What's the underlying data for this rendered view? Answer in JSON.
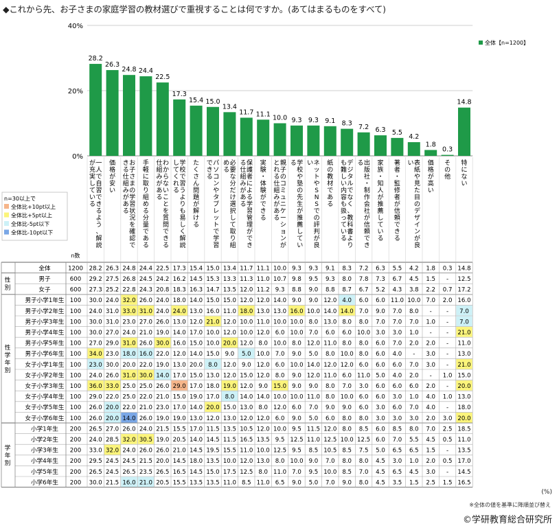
{
  "title": "◆これから先、お子さまの家庭学習の教材選びで重視することは何ですか。(あてはまるものをすべて)",
  "colors": {
    "bar": "#1f9a48",
    "hi10": "#f6b58a",
    "hi5": "#fbf47b",
    "lo5": "#cdf1f7",
    "lo10": "#7aa7e6",
    "grid": "#cfcfcf"
  },
  "chart_data": {
    "type": "bar",
    "title": "◆これから先、お子さまの家庭学習の教材選びで重視することは何ですか。(あてはまるものをすべて)",
    "y_ticks": [
      "0%",
      "20%",
      "40%"
    ],
    "ylim": [
      0,
      40
    ],
    "legend": "全体【n=1200】",
    "legend_position": "top-right",
    "categories": [
      "一人で自習できるよう、解説が充実している",
      "価格が安い",
      "お子さまの学習状況を確認できる仕組みがある",
      "手軽に取り組める分量である",
      "わからないことを質問できる仕組みがある",
      "学校で習うよりも易しく解説してくれる",
      "たくさん問題が解ける",
      "パソコンやタブレットで学習できる",
      "必要な分だけ選択して取り組める",
      "保護者による学習管理ができる仕組みがある",
      "実験・体験ができる",
      "親子のコミュニケーションがとれる仕組みがある",
      "学校や塾の先生が推薦している",
      "ネットやSNSでの評判が良い",
      "紙の教材である",
      "デジタルでなく、教科書よりも難しい内容も扱っている",
      "出版社・制作会社が信頼できる",
      "家族・知人が推薦している",
      "著者・監修者が信頼できる",
      "表紙や見た目のデザインが良い",
      "価格が高い",
      "その他",
      "特にない"
    ],
    "values": [
      28.2,
      26.3,
      24.8,
      24.4,
      22.5,
      17.3,
      15.4,
      15.0,
      13.4,
      11.7,
      11.1,
      10.0,
      9.3,
      9.3,
      9.1,
      8.3,
      7.2,
      6.3,
      5.5,
      4.2,
      1.8,
      0.3,
      14.8
    ],
    "value_labels": [
      "28.2",
      "26.3",
      "24.8",
      "24.4",
      "22.5",
      "17.3",
      "15.4",
      "15.0",
      "13.4",
      "11.7",
      "11.1",
      "10.0",
      "9.3",
      "9.3",
      "9.1",
      "8.3",
      "7.2",
      "6.3",
      "5.5",
      "4.2",
      "1.8",
      "0.3",
      "14.8"
    ]
  },
  "legend_box": {
    "title": "n=30以上で",
    "items": [
      {
        "label": "全体比+10pt以上",
        "color": "#f6b58a"
      },
      {
        "label": "全体比+5pt以上",
        "color": "#fbf47b"
      },
      {
        "label": "全体比-5pt以下",
        "color": "#cdf1f7"
      },
      {
        "label": "全体比-10pt以下",
        "color": "#7aa7e6"
      }
    ]
  },
  "table": {
    "n_header": "n数",
    "groups": [
      {
        "label": "",
        "rows": [
          {
            "label": "全体",
            "n": "1200",
            "cells": [
              "28.2",
              "26.3",
              "24.8",
              "24.4",
              "22.5",
              "17.3",
              "15.4",
              "15.0",
              "13.4",
              "11.7",
              "11.1",
              "10.0",
              "9.3",
              "9.3",
              "9.1",
              "8.3",
              "7.2",
              "6.3",
              "5.5",
              "4.2",
              "1.8",
              "0.3",
              "14.8"
            ],
            "hl": {}
          }
        ]
      },
      {
        "label": "性別",
        "rows": [
          {
            "label": "男子",
            "n": "600",
            "cells": [
              "29.2",
              "27.5",
              "26.8",
              "24.5",
              "24.2",
              "16.2",
              "14.5",
              "15.3",
              "13.3",
              "11.3",
              "11.0",
              "10.7",
              "9.8",
              "9.5",
              "9.3",
              "8.0",
              "7.8",
              "7.3",
              "6.7",
              "4.5",
              "1.5",
              "-",
              "12.5"
            ],
            "hl": {}
          },
          {
            "label": "女子",
            "n": "600",
            "cells": [
              "27.3",
              "25.2",
              "22.8",
              "24.3",
              "20.8",
              "18.3",
              "16.3",
              "14.7",
              "13.5",
              "12.0",
              "11.2",
              "9.3",
              "8.8",
              "9.0",
              "8.8",
              "8.7",
              "6.7",
              "5.2",
              "4.3",
              "3.8",
              "2.2",
              "0.7",
              "17.2"
            ],
            "hl": {}
          }
        ]
      },
      {
        "label": "性学年別",
        "rows": [
          {
            "label": "男子小学1年生",
            "n": "100",
            "cells": [
              "30.0",
              "24.0",
              "32.0",
              "26.0",
              "24.0",
              "18.0",
              "14.0",
              "15.0",
              "15.0",
              "12.0",
              "12.0",
              "14.0",
              "9.0",
              "9.0",
              "12.0",
              "4.0",
              "6.0",
              "6.0",
              "11.0",
              "10.0",
              "7.0",
              "2.0",
              "16.0"
            ],
            "hl": {
              "2": "hi5",
              "15": "lo5"
            }
          },
          {
            "label": "男子小学2年生",
            "n": "100",
            "cells": [
              "24.0",
              "31.0",
              "33.0",
              "31.0",
              "24.0",
              "24.0",
              "13.0",
              "16.0",
              "11.0",
              "18.0",
              "13.0",
              "13.0",
              "16.0",
              "10.0",
              "14.0",
              "14.0",
              "7.0",
              "9.0",
              "7.0",
              "8.0",
              "-",
              "-",
              "7.0"
            ],
            "hl": {
              "2": "hi5",
              "3": "hi5",
              "5": "hi5",
              "9": "hi5",
              "12": "hi5",
              "15": "hi5",
              "22": "lo5"
            }
          },
          {
            "label": "男子小学3年生",
            "n": "100",
            "cells": [
              "30.0",
              "31.0",
              "23.0",
              "27.0",
              "26.0",
              "13.0",
              "12.0",
              "21.0",
              "12.0",
              "10.0",
              "11.0",
              "10.0",
              "10.0",
              "8.0",
              "13.0",
              "8.0",
              "8.0",
              "7.0",
              "7.0",
              "7.0",
              "1.0",
              "-",
              "7.0"
            ],
            "hl": {
              "7": "hi5",
              "22": "lo5"
            }
          },
          {
            "label": "男子小学4年生",
            "n": "100",
            "cells": [
              "30.0",
              "27.0",
              "24.0",
              "21.0",
              "19.0",
              "14.0",
              "17.0",
              "10.0",
              "12.0",
              "10.0",
              "12.0",
              "6.0",
              "10.0",
              "7.0",
              "6.0",
              "6.0",
              "10.0",
              "3.0",
              "3.0",
              "1.0",
              "-",
              "-",
              "21.0"
            ],
            "hl": {
              "22": "hi5"
            }
          },
          {
            "label": "男子小学5年生",
            "n": "100",
            "cells": [
              "27.0",
              "29.0",
              "31.0",
              "26.0",
              "30.0",
              "16.0",
              "15.0",
              "10.0",
              "20.0",
              "12.0",
              "8.0",
              "10.0",
              "8.0",
              "12.0",
              "11.0",
              "8.0",
              "8.0",
              "6.0",
              "7.0",
              "2.0",
              "2.0",
              "-",
              "11.0"
            ],
            "hl": {
              "2": "hi5",
              "4": "hi5",
              "8": "hi5"
            }
          },
          {
            "label": "男子小学6年生",
            "n": "100",
            "cells": [
              "34.0",
              "23.0",
              "18.0",
              "16.0",
              "22.0",
              "12.0",
              "14.0",
              "15.0",
              "9.0",
              "5.0",
              "10.0",
              "7.0",
              "9.0",
              "5.0",
              "8.0",
              "10.0",
              "8.0",
              "6.0",
              "4.0",
              "-",
              "3.0",
              "-",
              "13.0"
            ],
            "hl": {
              "0": "hi5",
              "2": "lo5",
              "3": "lo5",
              "9": "lo5"
            }
          },
          {
            "label": "女子小学1年生",
            "n": "100",
            "cells": [
              "23.0",
              "30.0",
              "20.0",
              "22.0",
              "19.0",
              "13.0",
              "20.0",
              "8.0",
              "12.0",
              "9.0",
              "12.0",
              "6.0",
              "10.0",
              "14.0",
              "12.0",
              "12.0",
              "6.0",
              "6.0",
              "6.0",
              "7.0",
              "3.0",
              "-",
              "21.0"
            ],
            "hl": {
              "0": "lo5",
              "7": "lo5",
              "22": "hi5"
            }
          },
          {
            "label": "女子小学2年生",
            "n": "100",
            "cells": [
              "24.0",
              "26.0",
              "31.0",
              "30.0",
              "14.0",
              "17.0",
              "15.0",
              "13.0",
              "12.0",
              "15.0",
              "12.0",
              "8.0",
              "9.0",
              "12.0",
              "11.0",
              "6.0",
              "11.0",
              "5.0",
              "4.0",
              "2.0",
              "-",
              "1.0",
              "15.0"
            ],
            "hl": {
              "2": "hi5",
              "3": "hi5",
              "4": "lo5"
            }
          },
          {
            "label": "女子小学3年生",
            "n": "100",
            "cells": [
              "36.0",
              "33.0",
              "25.0",
              "25.0",
              "26.0",
              "29.0",
              "17.0",
              "18.0",
              "19.0",
              "12.0",
              "9.0",
              "15.0",
              "9.0",
              "9.0",
              "8.0",
              "7.0",
              "3.0",
              "6.0",
              "6.0",
              "6.0",
              "2.0",
              "-",
              "20.0"
            ],
            "hl": {
              "0": "hi5",
              "1": "hi5",
              "5": "hi10",
              "8": "hi5",
              "11": "hi5",
              "22": "hi5"
            }
          },
          {
            "label": "女子小学4年生",
            "n": "100",
            "cells": [
              "29.0",
              "22.0",
              "25.0",
              "22.0",
              "21.0",
              "15.0",
              "19.0",
              "17.0",
              "8.0",
              "14.0",
              "14.0",
              "10.0",
              "10.0",
              "11.0",
              "8.0",
              "10.0",
              "6.0",
              "6.0",
              "3.0",
              "1.0",
              "4.0",
              "1.0",
              "13.0"
            ],
            "hl": {
              "8": "lo5"
            }
          },
          {
            "label": "女子小学5年生",
            "n": "100",
            "cells": [
              "26.0",
              "20.0",
              "22.0",
              "21.0",
              "23.0",
              "17.0",
              "14.0",
              "20.0",
              "15.0",
              "13.0",
              "8.0",
              "12.0",
              "6.0",
              "7.0",
              "9.0",
              "9.0",
              "6.0",
              "3.0",
              "6.0",
              "7.0",
              "4.0",
              "-",
              "18.0"
            ],
            "hl": {
              "1": "lo5",
              "7": "hi5"
            }
          },
          {
            "label": "女子小学6年生",
            "n": "100",
            "cells": [
              "26.0",
              "20.0",
              "14.0",
              "26.0",
              "19.0",
              "19.0",
              "13.0",
              "12.0",
              "13.0",
              "12.0",
              "12.0",
              "6.0",
              "9.0",
              "5.0",
              "6.0",
              "8.0",
              "8.0",
              "3.0",
              "3.0",
              "3.0",
              "2.0",
              "3.0",
              "20.0"
            ],
            "hl": {
              "1": "lo5",
              "2": "lo10",
              "22": "hi5"
            }
          }
        ]
      },
      {
        "label": "学年別",
        "rows": [
          {
            "label": "小学1年生",
            "n": "200",
            "cells": [
              "26.5",
              "27.0",
              "26.0",
              "24.0",
              "21.5",
              "15.5",
              "17.0",
              "11.5",
              "13.5",
              "10.5",
              "12.0",
              "10.0",
              "9.5",
              "11.5",
              "12.0",
              "8.0",
              "8.5",
              "6.0",
              "8.5",
              "8.0",
              "7.0",
              "2.5",
              "18.5"
            ],
            "hl": {}
          },
          {
            "label": "小学2年生",
            "n": "200",
            "cells": [
              "24.0",
              "28.5",
              "32.0",
              "30.5",
              "19.0",
              "20.5",
              "14.0",
              "14.5",
              "11.5",
              "16.5",
              "13.5",
              "9.5",
              "12.5",
              "11.0",
              "12.5",
              "10.0",
              "12.5",
              "6.0",
              "7.0",
              "5.5",
              "4.5",
              "0.5",
              "11.0"
            ],
            "hl": {
              "2": "hi5",
              "3": "hi5"
            }
          },
          {
            "label": "小学3年生",
            "n": "200",
            "cells": [
              "33.0",
              "32.0",
              "24.0",
              "26.0",
              "26.0",
              "21.0",
              "14.5",
              "19.5",
              "15.5",
              "11.0",
              "10.0",
              "12.5",
              "9.5",
              "8.5",
              "10.5",
              "8.5",
              "7.5",
              "5.0",
              "6.5",
              "6.5",
              "1.5",
              "-",
              "13.5"
            ],
            "hl": {
              "1": "hi5"
            }
          },
          {
            "label": "小学4年生",
            "n": "200",
            "cells": [
              "29.5",
              "24.5",
              "24.5",
              "21.5",
              "20.0",
              "14.5",
              "18.0",
              "13.5",
              "10.0",
              "12.0",
              "13.0",
              "8.0",
              "10.0",
              "9.0",
              "7.0",
              "8.0",
              "8.0",
              "4.5",
              "3.0",
              "1.0",
              "2.0",
              "0.5",
              "17.0"
            ],
            "hl": {}
          },
          {
            "label": "小学5年生",
            "n": "200",
            "cells": [
              "26.5",
              "24.5",
              "26.5",
              "23.5",
              "26.5",
              "16.5",
              "14.5",
              "15.0",
              "17.5",
              "12.5",
              "8.0",
              "11.0",
              "7.0",
              "9.5",
              "10.0",
              "8.5",
              "7.0",
              "4.5",
              "6.5",
              "4.5",
              "3.0",
              "-",
              "14.5"
            ],
            "hl": {}
          },
          {
            "label": "小学6年生",
            "n": "200",
            "cells": [
              "30.0",
              "21.5",
              "16.0",
              "21.0",
              "20.5",
              "15.5",
              "13.5",
              "13.5",
              "11.0",
              "8.5",
              "11.0",
              "6.5",
              "9.0",
              "5.0",
              "7.0",
              "9.0",
              "8.0",
              "4.5",
              "3.5",
              "1.5",
              "2.5",
              "1.5",
              "16.5"
            ],
            "hl": {
              "2": "lo5",
              "3": "lo5"
            }
          }
        ]
      }
    ]
  },
  "pct_unit": "(%)",
  "footnote": "※全体の値を基準に降順並び替え",
  "copyright": "©学研教育総合研究所"
}
